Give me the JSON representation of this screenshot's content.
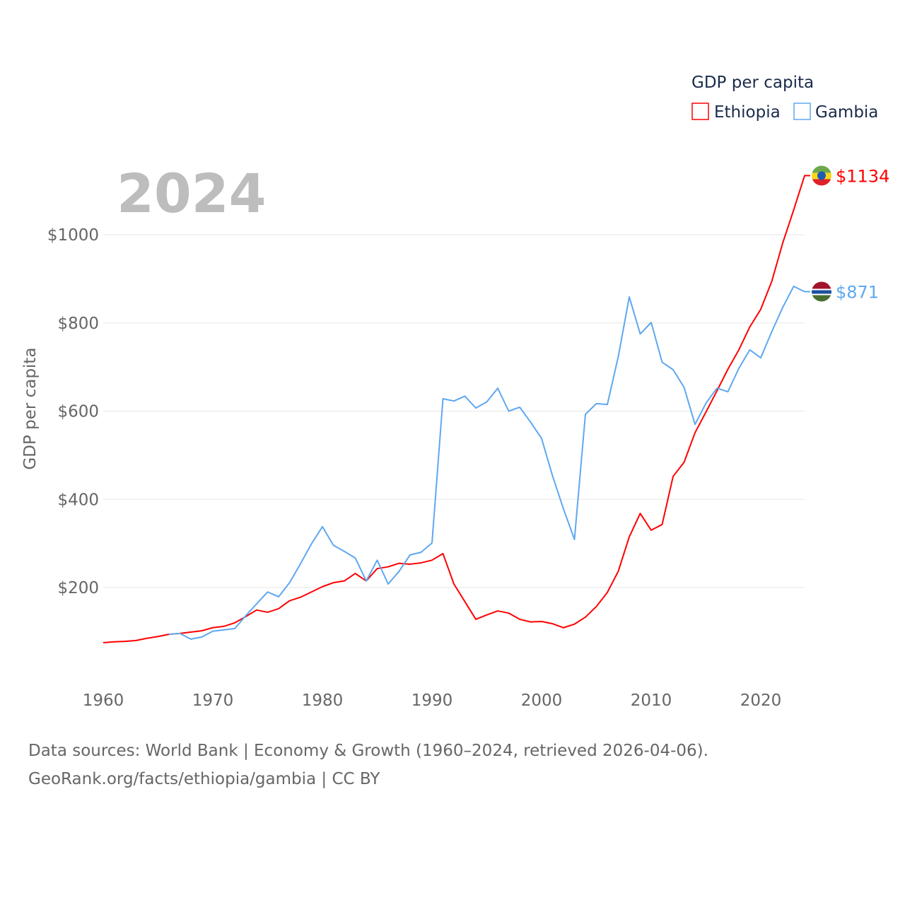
{
  "chart_data": {
    "type": "line",
    "title": "GDP per capita",
    "year_label": "2024",
    "ylabel": "GDP per capita",
    "xlabel": "",
    "xlim": [
      1960,
      2024
    ],
    "ylim": [
      0,
      1150
    ],
    "x_ticks": [
      "1960",
      "1970",
      "1980",
      "1990",
      "2000",
      "2010",
      "2020"
    ],
    "y_ticks": [
      {
        "value": 200,
        "label": "$200"
      },
      {
        "value": 400,
        "label": "$400"
      },
      {
        "value": 600,
        "label": "$600"
      },
      {
        "value": 800,
        "label": "$800"
      },
      {
        "value": 1000,
        "label": "$1000"
      }
    ],
    "grid": true,
    "legend_position": "top-right",
    "series": [
      {
        "name": "Ethiopia",
        "color": "#ff0000",
        "end_label": "$1134",
        "start_year": 1960,
        "values": [
          75,
          77,
          78,
          80,
          85,
          89,
          94,
          96,
          99,
          102,
          109,
          112,
          120,
          134,
          149,
          144,
          152,
          170,
          178,
          190,
          202,
          211,
          215,
          232,
          215,
          243,
          247,
          255,
          253,
          256,
          262,
          277,
          208,
          168,
          128,
          138,
          147,
          142,
          128,
          122,
          123,
          118,
          109,
          117,
          133,
          157,
          189,
          237,
          315,
          368,
          330,
          343,
          452,
          484,
          551,
          598,
          646,
          695,
          739,
          791,
          831,
          894,
          981,
          1056,
          1134
        ]
      },
      {
        "name": "Gambia",
        "color": "#5ea8f0",
        "end_label": "$871",
        "start_year": 1966,
        "values": [
          94,
          96,
          83,
          88,
          101,
          104,
          107,
          136,
          163,
          190,
          179,
          211,
          254,
          299,
          338,
          296,
          282,
          267,
          215,
          262,
          208,
          237,
          274,
          280,
          301,
          628,
          623,
          634,
          607,
          621,
          652,
          600,
          609,
          575,
          538,
          453,
          378,
          309,
          593,
          617,
          615,
          724,
          859,
          775,
          801,
          711,
          694,
          654,
          570,
          618,
          652,
          644,
          697,
          739,
          721,
          780,
          835,
          883,
          871
        ]
      }
    ]
  },
  "footer": {
    "line1": "Data sources: World Bank | Economy & Growth (1960–2024, retrieved 2026-04-06).",
    "line2": "GeoRank.org/facts/ethiopia/gambia | CC BY"
  }
}
